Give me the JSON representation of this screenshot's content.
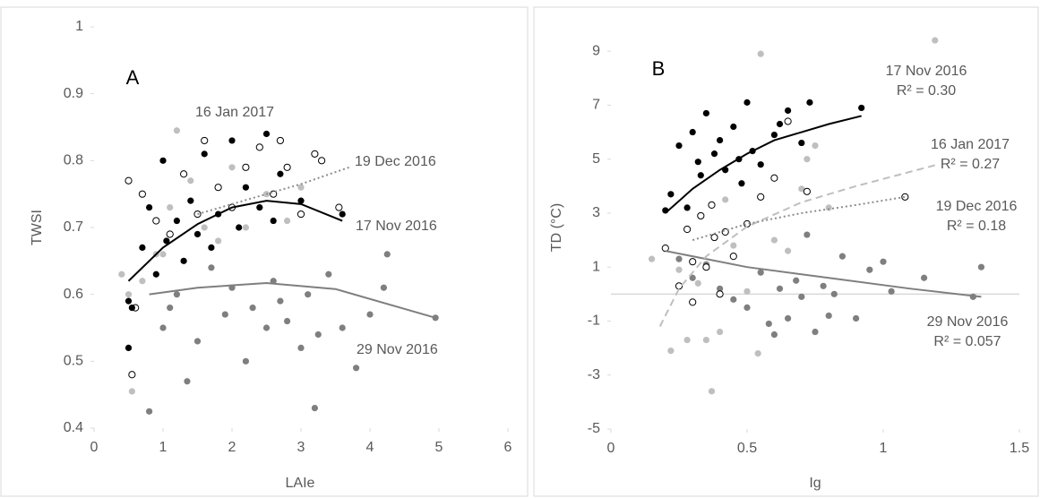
{
  "chart_data": [
    {
      "type": "scatter",
      "title": "A",
      "x_label": "LAIe",
      "y_label": "TWSI",
      "xlim": [
        0,
        6
      ],
      "ylim": [
        0.4,
        1
      ],
      "xticks": [
        0,
        1,
        2,
        3,
        4,
        5,
        6
      ],
      "yticks": [
        0.4,
        0.5,
        0.6,
        0.7,
        0.8,
        0.9,
        1
      ],
      "series": [
        {
          "name": "29 Nov 2016",
          "color": "#7f7f7f",
          "marker": "filled",
          "line_style": "solid",
          "x": [
            0.8,
            1.0,
            1.2,
            1.35,
            1.5,
            1.7,
            1.9,
            2.0,
            2.2,
            2.3,
            2.5,
            2.6,
            2.8,
            3.0,
            3.1,
            3.2,
            3.4,
            3.6,
            3.8,
            4.0,
            4.2,
            4.25,
            4.95,
            1.1,
            2.7,
            3.25
          ],
          "values": [
            0.425,
            0.55,
            0.6,
            0.47,
            0.53,
            0.64,
            0.57,
            0.61,
            0.5,
            0.58,
            0.55,
            0.62,
            0.56,
            0.52,
            0.6,
            0.43,
            0.63,
            0.55,
            0.49,
            0.57,
            0.61,
            0.66,
            0.565,
            0.58,
            0.59,
            0.54
          ],
          "trend": {
            "x": [
              0.8,
              1.5,
              2.5,
              3.5,
              4.95
            ],
            "values": [
              0.6,
              0.61,
              0.617,
              0.608,
              0.565
            ]
          }
        },
        {
          "name": "16 Jan 2017",
          "color": "#bfbfbf",
          "marker": "filled",
          "x": [
            0.4,
            0.55,
            0.7,
            0.9,
            1.1,
            1.2,
            1.4,
            1.6,
            1.8,
            2.0,
            2.2,
            2.5,
            2.8,
            3.0,
            0.5,
            1.0
          ],
          "values": [
            0.63,
            0.455,
            0.62,
            0.66,
            0.73,
            0.845,
            0.77,
            0.7,
            0.68,
            0.79,
            0.7,
            0.75,
            0.71,
            0.76,
            0.6,
            0.66
          ]
        },
        {
          "name": "19 Dec 2016",
          "color": "#000000",
          "marker": "hollow",
          "line_style": "dotted",
          "line_color": "#8c8c8c",
          "x": [
            0.5,
            0.55,
            0.7,
            0.9,
            1.1,
            1.3,
            1.5,
            1.6,
            1.8,
            2.0,
            2.2,
            2.4,
            2.6,
            2.8,
            3.0,
            3.2,
            3.3,
            3.55,
            0.6,
            2.7
          ],
          "values": [
            0.77,
            0.48,
            0.75,
            0.71,
            0.69,
            0.78,
            0.72,
            0.83,
            0.76,
            0.73,
            0.79,
            0.82,
            0.75,
            0.79,
            0.72,
            0.81,
            0.8,
            0.73,
            0.58,
            0.83
          ],
          "trend": {
            "x": [
              1.5,
              2,
              2.5,
              3,
              3.7
            ],
            "values": [
              0.72,
              0.735,
              0.75,
              0.765,
              0.79
            ]
          }
        },
        {
          "name": "17 Nov 2016",
          "color": "#000000",
          "marker": "filled",
          "line_style": "solid",
          "x": [
            0.5,
            0.55,
            0.7,
            0.8,
            0.9,
            1.0,
            1.05,
            1.2,
            1.3,
            1.4,
            1.5,
            1.6,
            1.7,
            1.8,
            2.0,
            2.1,
            2.2,
            2.4,
            2.5,
            2.6,
            2.7,
            3.0,
            3.6,
            0.5
          ],
          "values": [
            0.52,
            0.58,
            0.67,
            0.73,
            0.63,
            0.8,
            0.68,
            0.71,
            0.65,
            0.74,
            0.69,
            0.81,
            0.67,
            0.72,
            0.83,
            0.7,
            0.76,
            0.73,
            0.84,
            0.71,
            0.78,
            0.74,
            0.72,
            0.59
          ],
          "trend": {
            "x": [
              0.5,
              1,
              1.5,
              2,
              2.5,
              3,
              3.6
            ],
            "values": [
              0.62,
              0.67,
              0.705,
              0.73,
              0.74,
              0.735,
              0.71
            ]
          }
        }
      ]
    },
    {
      "type": "scatter",
      "title": "B",
      "x_label": "Ig",
      "y_label": "TD (°C)",
      "xlim": [
        0,
        1.5
      ],
      "ylim": [
        -5,
        10
      ],
      "xticks": [
        0,
        0.5,
        1,
        1.5
      ],
      "yticks": [
        -5,
        -3,
        -1,
        1,
        3,
        5,
        7,
        9
      ],
      "reference_line": 0,
      "series": [
        {
          "name": "29 Nov 2016",
          "r2_label": "R² = 0.057",
          "color": "#7f7f7f",
          "marker": "filled",
          "line_style": "solid",
          "x": [
            0.25,
            0.3,
            0.35,
            0.4,
            0.45,
            0.5,
            0.55,
            0.6,
            0.62,
            0.65,
            0.68,
            0.7,
            0.72,
            0.75,
            0.78,
            0.8,
            0.85,
            0.9,
            0.95,
            1.0,
            1.03,
            1.15,
            1.33,
            1.36,
            0.58,
            0.82
          ],
          "values": [
            1.3,
            0.6,
            1.1,
            0.2,
            -0.2,
            -0.5,
            0.8,
            -1.5,
            0.2,
            -0.9,
            0.5,
            -0.1,
            2.2,
            -1.4,
            0.3,
            -0.8,
            1.4,
            -0.9,
            0.9,
            1.2,
            0.1,
            0.6,
            -0.1,
            1.0,
            -1.1,
            0.0
          ],
          "trend": {
            "x": [
              0.2,
              0.5,
              0.8,
              1.1,
              1.36
            ],
            "values": [
              1.6,
              1.0,
              0.6,
              0.2,
              -0.1
            ]
          }
        },
        {
          "name": "16 Jan 2017",
          "r2_label": "R² = 0.27",
          "color": "#bfbfbf",
          "marker": "filled",
          "line_style": "dashed",
          "x": [
            0.15,
            0.22,
            0.28,
            0.32,
            0.35,
            0.37,
            0.4,
            0.45,
            0.5,
            0.54,
            0.55,
            0.6,
            0.65,
            0.7,
            0.72,
            0.75,
            1.19,
            0.25,
            0.42,
            0.8
          ],
          "values": [
            1.3,
            -2.1,
            -1.7,
            0.4,
            -1.7,
            -3.6,
            -1.4,
            1.8,
            0.1,
            -2.2,
            8.9,
            2.0,
            1.6,
            3.9,
            5.0,
            5.5,
            9.4,
            0.9,
            3.5,
            3.2
          ],
          "trend": {
            "x": [
              0.18,
              0.25,
              0.35,
              0.5,
              0.7,
              0.9,
              1.2
            ],
            "values": [
              -1.2,
              0.2,
              1.4,
              2.5,
              3.4,
              4.0,
              4.8
            ]
          }
        },
        {
          "name": "19 Dec 2016",
          "r2_label": "R² = 0.18",
          "color": "#000000",
          "marker": "hollow",
          "line_style": "dotted",
          "line_color": "#8c8c8c",
          "x": [
            0.2,
            0.25,
            0.28,
            0.3,
            0.33,
            0.35,
            0.37,
            0.4,
            0.42,
            0.45,
            0.5,
            0.55,
            0.6,
            0.65,
            0.72,
            0.38,
            0.3,
            1.08
          ],
          "values": [
            1.7,
            0.3,
            2.4,
            -0.3,
            2.9,
            1.0,
            3.3,
            0.0,
            2.3,
            1.4,
            2.6,
            3.6,
            4.3,
            6.4,
            3.8,
            2.1,
            1.2,
            3.6
          ],
          "trend": {
            "x": [
              0.3,
              0.5,
              0.7,
              0.9,
              1.08
            ],
            "values": [
              2.0,
              2.6,
              3.0,
              3.3,
              3.6
            ]
          }
        },
        {
          "name": "17 Nov 2016",
          "r2_label": "R² = 0.30",
          "color": "#000000",
          "marker": "filled",
          "line_style": "solid",
          "x": [
            0.2,
            0.22,
            0.25,
            0.28,
            0.3,
            0.32,
            0.35,
            0.38,
            0.4,
            0.42,
            0.45,
            0.47,
            0.5,
            0.52,
            0.55,
            0.6,
            0.62,
            0.65,
            0.7,
            0.73,
            0.92,
            0.48,
            0.33
          ],
          "values": [
            3.1,
            3.7,
            5.5,
            3.2,
            6.0,
            4.9,
            6.7,
            5.2,
            5.7,
            4.6,
            6.2,
            5.0,
            7.1,
            5.3,
            4.8,
            5.9,
            6.3,
            6.8,
            5.6,
            7.1,
            6.9,
            4.1,
            4.4
          ],
          "trend": {
            "x": [
              0.2,
              0.3,
              0.4,
              0.5,
              0.6,
              0.7,
              0.8,
              0.92
            ],
            "values": [
              3.0,
              3.9,
              4.6,
              5.2,
              5.7,
              6.0,
              6.3,
              6.6
            ]
          }
        }
      ]
    }
  ]
}
